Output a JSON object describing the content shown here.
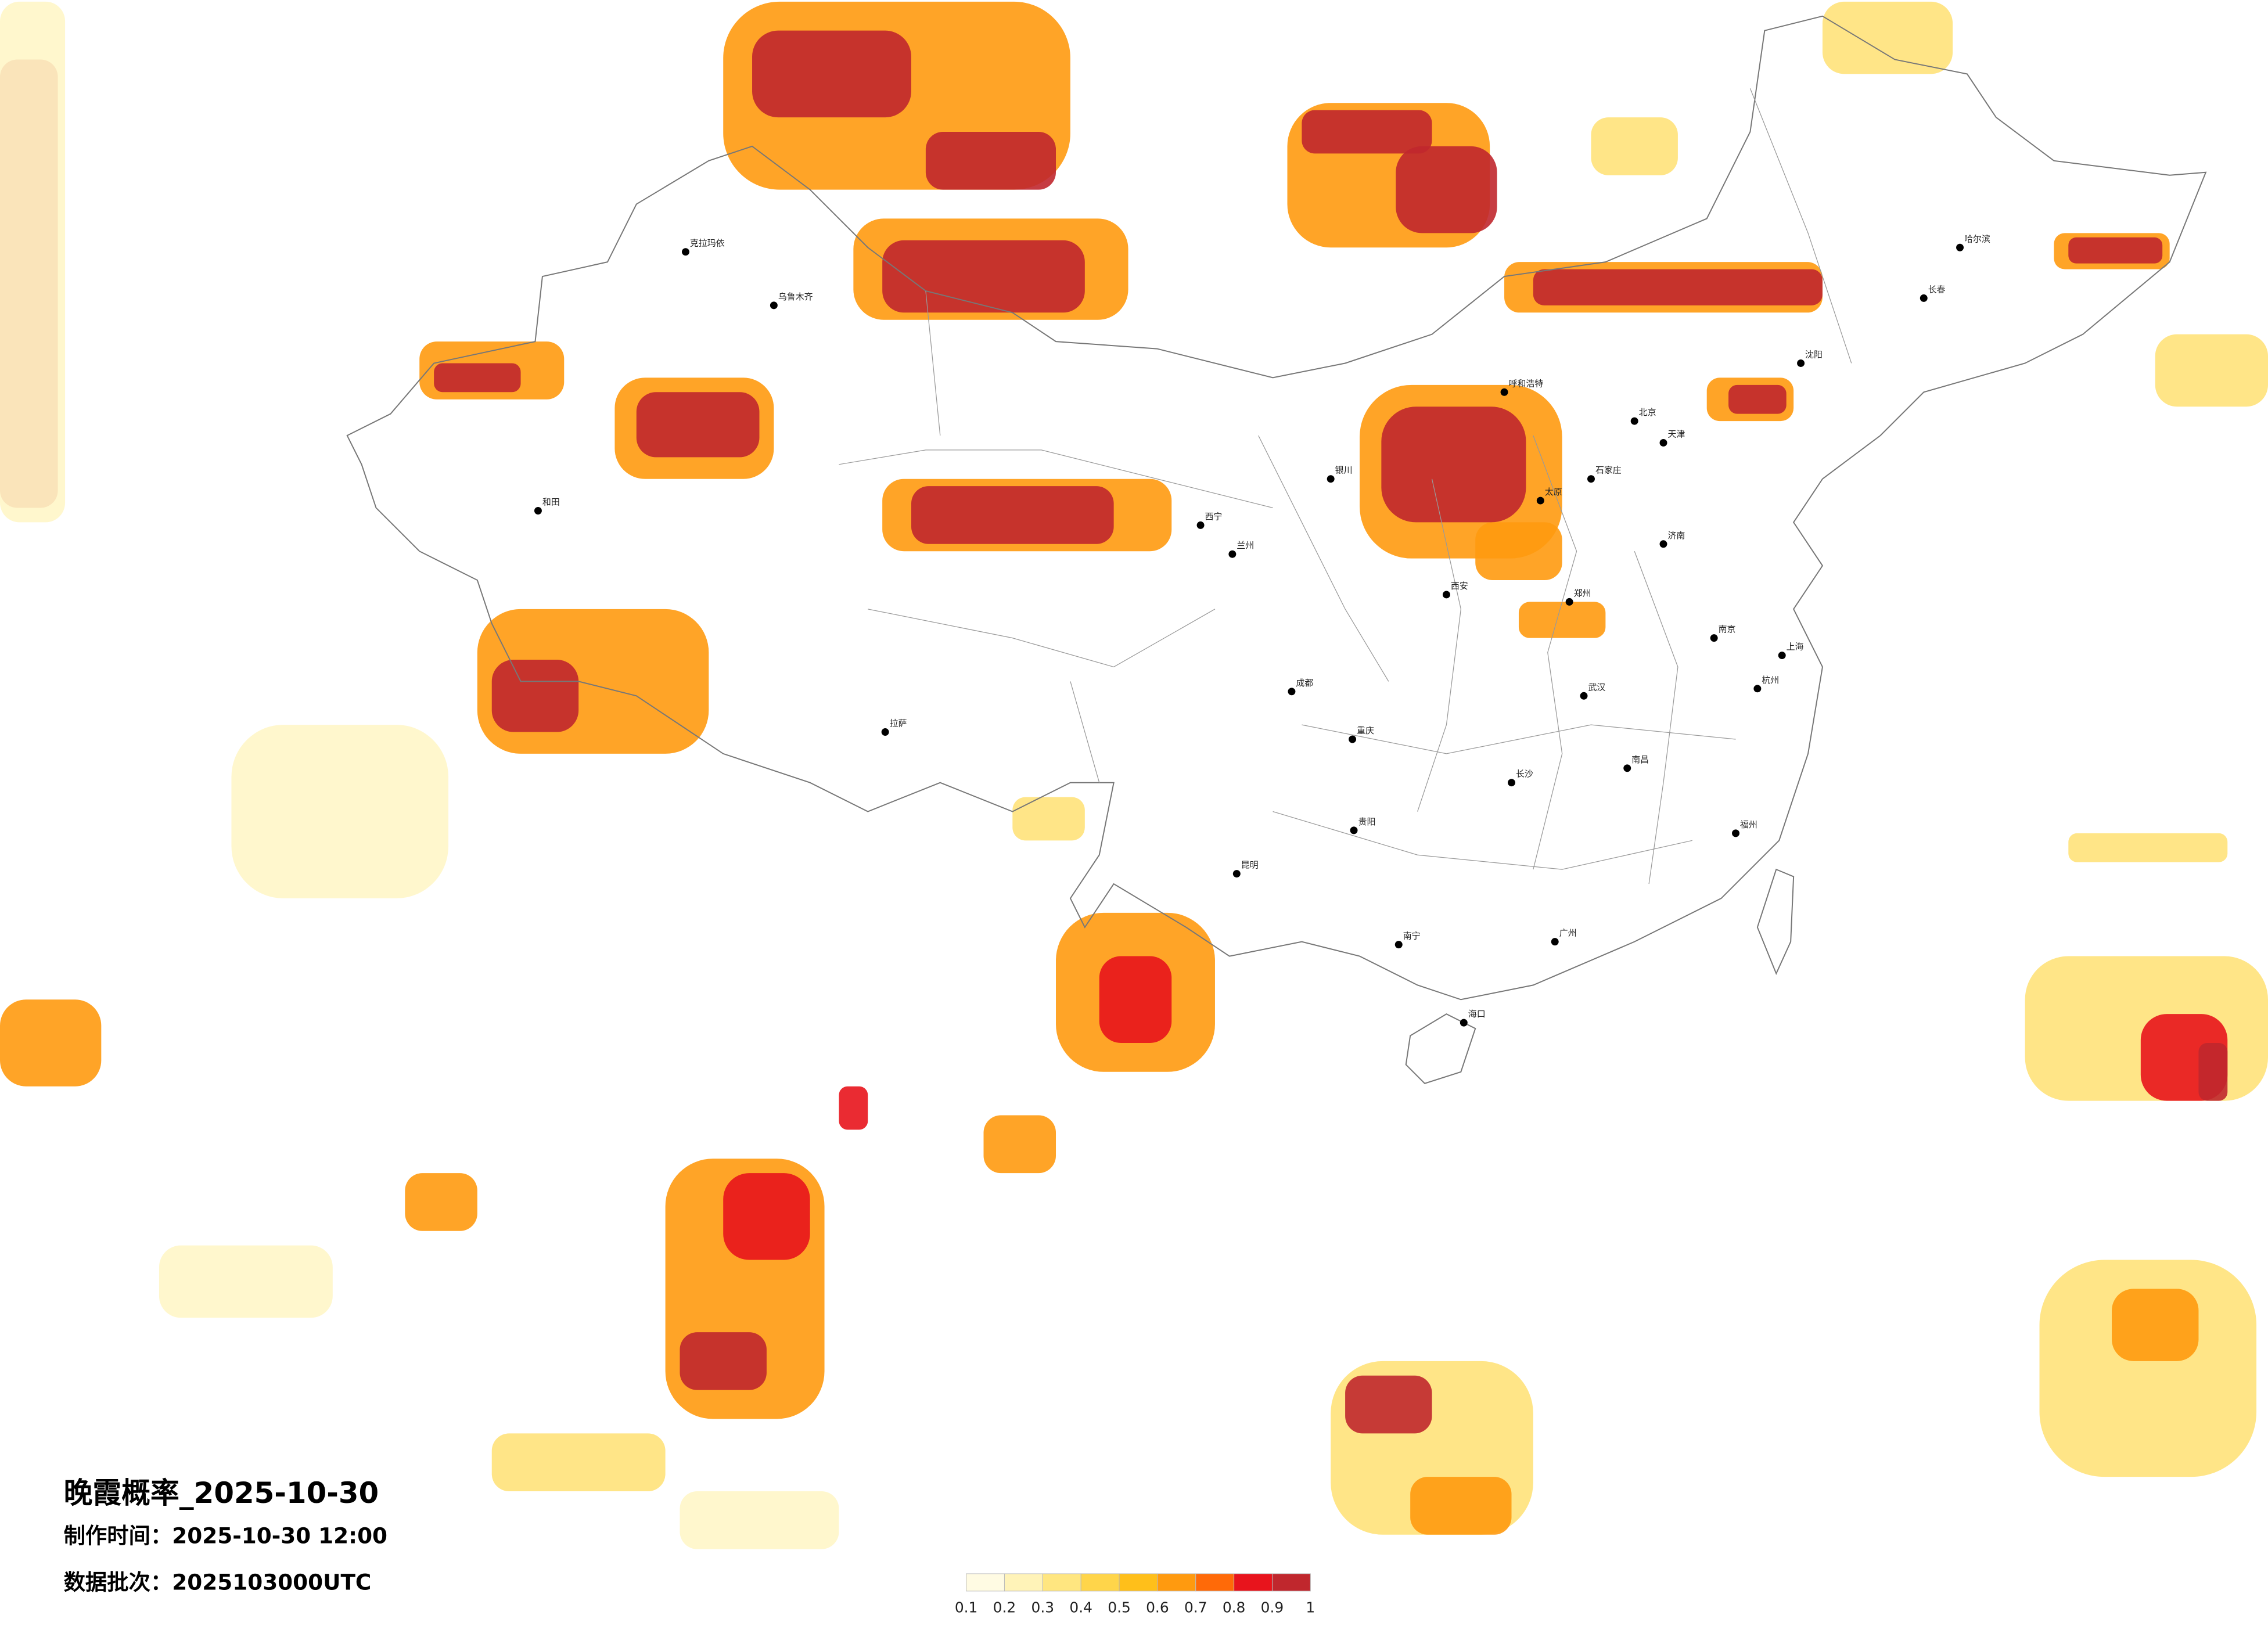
{
  "title": "晚霞概率_2025-10-30",
  "made_time": "制作时间：2025-10-30 12:00",
  "batch": "数据批次：2025103000UTC",
  "legend": {
    "ticks": [
      0.1,
      0.2,
      0.3,
      0.4,
      0.5,
      0.6,
      0.7,
      0.8,
      0.9,
      1
    ],
    "colors": [
      "#fffbe3",
      "#fff3b8",
      "#ffe680",
      "#ffd54a",
      "#ffbf1a",
      "#ff9a0f",
      "#ff6a08",
      "#e8141c",
      "#c0272d"
    ]
  },
  "cities": [
    "克拉玛依",
    "乌鲁木齐",
    "和田",
    "拉萨",
    "西宁",
    "兰州",
    "银川",
    "呼和浩特",
    "成都",
    "重庆",
    "昆明",
    "贵阳",
    "南宁",
    "海口",
    "广州",
    "长沙",
    "武汉",
    "南昌",
    "南京",
    "上海",
    "杭州",
    "福州",
    "郑州",
    "济南",
    "石家庄",
    "北京",
    "天津",
    "太原",
    "西安",
    "沈阳",
    "长春",
    "哈尔滨"
  ]
}
